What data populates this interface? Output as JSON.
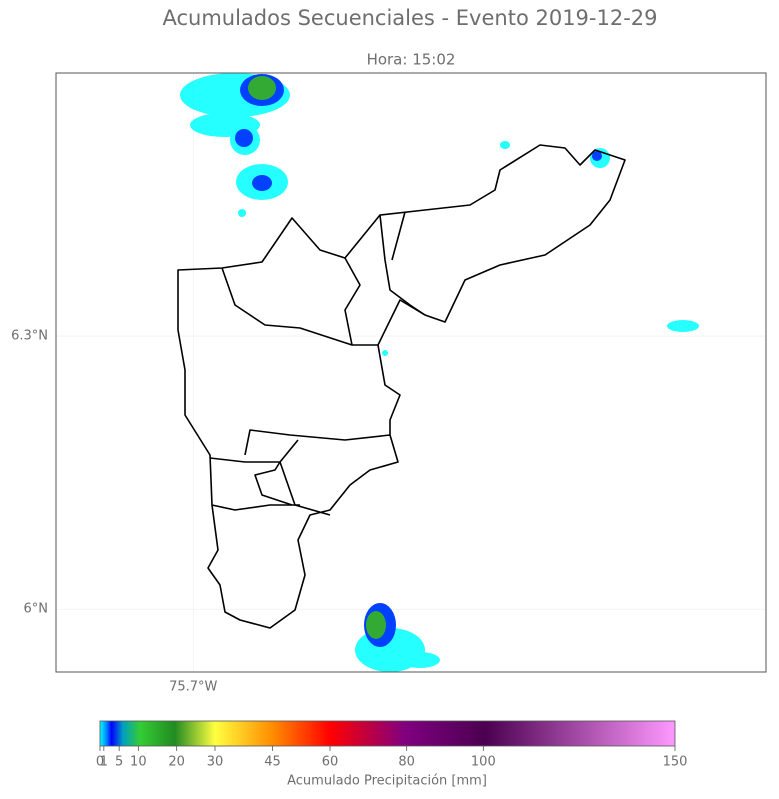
{
  "chart_data": {
    "type": "map",
    "title": "Acumulados Secuenciales - Evento 2019-12-29",
    "subtitle": "Hora: 15:02",
    "xlim": [
      -75.851,
      -75.07
    ],
    "ylim": [
      5.931,
      6.589
    ],
    "xticks": [
      {
        "value": -75.7,
        "label": "75.7°W"
      }
    ],
    "yticks": [
      {
        "value": 6.3,
        "label": "6.3°N"
      },
      {
        "value": 6.0,
        "label": "6°N"
      }
    ],
    "grid": true,
    "colorbar": {
      "label": "Acumulado Precipitación [mm]",
      "lim": [
        0,
        150
      ],
      "ticks": [
        0,
        1,
        5,
        10,
        20,
        30,
        45,
        60,
        80,
        100,
        150
      ]
    }
  }
}
